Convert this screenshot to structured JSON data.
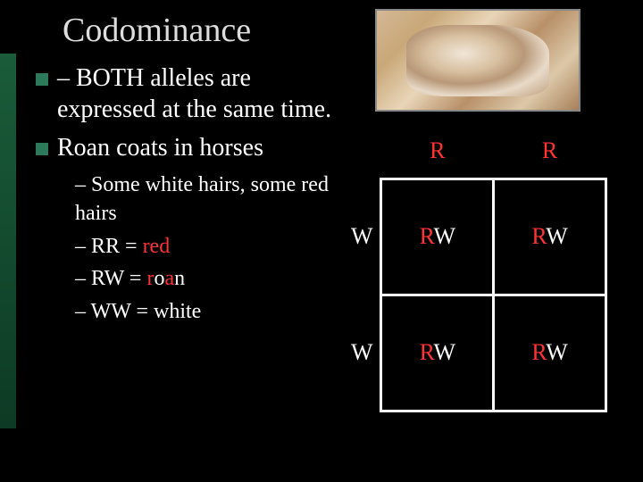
{
  "title": "Codominance",
  "bullets": {
    "b1_prefix": "– ",
    "b1_text": "BOTH alleles are expressed at the same time.",
    "b2_text": "Roan coats in horses"
  },
  "subs": {
    "s1": "– Some white hairs, some red hairs",
    "s2_prefix": "– RR = ",
    "s2_red": "red",
    "s3_prefix": "– RW = ",
    "s3_r": "r",
    "s3_o": "o",
    "s3_a": "a",
    "s3_n": "n",
    "s4_prefix": "– WW = ",
    "s4_white": "white"
  },
  "punnett": {
    "col1": "R",
    "col2": "R",
    "row1": "W",
    "row2": "W",
    "cell_r": "R",
    "cell_w": "W"
  },
  "colors": {
    "red": "#ff3333",
    "white": "#ffffff",
    "background": "#000000",
    "accent": "#2d7a5a"
  }
}
